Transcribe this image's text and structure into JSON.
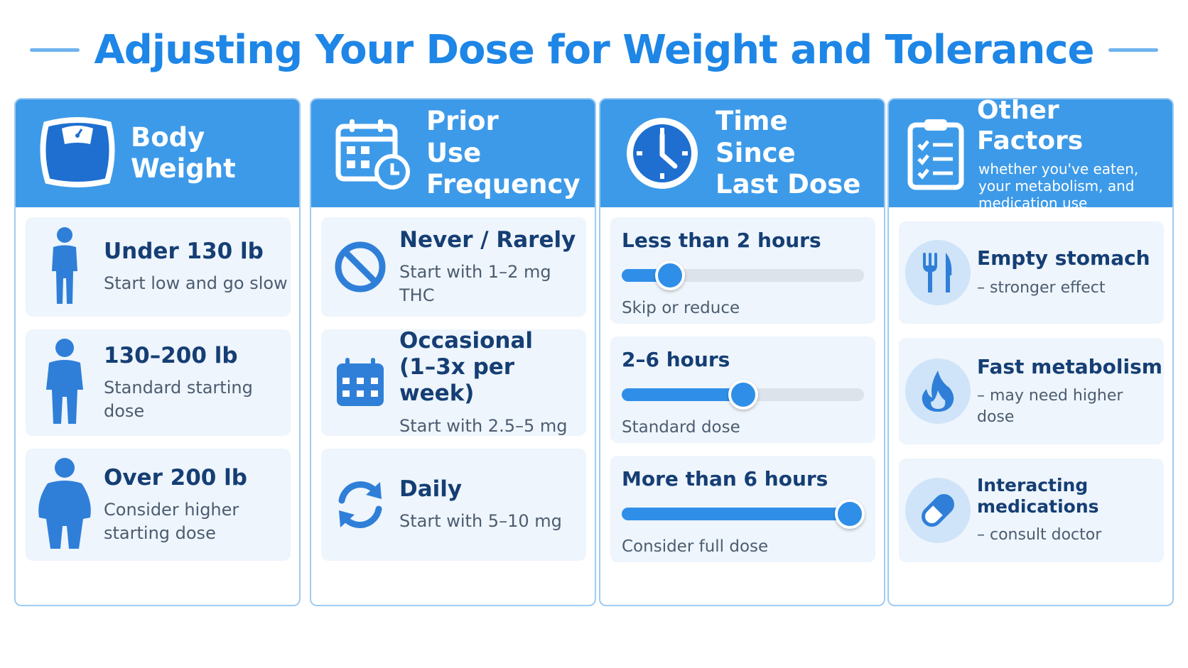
{
  "title": "Adjusting Your Dose for Weight and Tolerance",
  "colors": {
    "accent": "#1e86e6",
    "header": "#3d9ae8",
    "card": "#eef5fc",
    "slider": "#2f8fe8"
  },
  "columns": [
    {
      "title": "Body Weight",
      "icon": "scale-icon",
      "items": [
        {
          "title": "Under 130 lb",
          "sub": "Start low and go slow",
          "icon": "slim-person-icon"
        },
        {
          "title": "130–200 lb",
          "sub": "Standard starting dose",
          "icon": "medium-person-icon"
        },
        {
          "title": "Over 200 lb",
          "sub": "Consider higher starting dose",
          "icon": "large-person-icon"
        }
      ]
    },
    {
      "title": "Prior Use Frequency",
      "icon": "calendar-clock-icon",
      "items": [
        {
          "title": "Never / Rarely",
          "sub": "Start with 1–2 mg THC",
          "icon": "prohibited-icon"
        },
        {
          "title": "Occasional (1–3x per week)",
          "sub": "Start with 2.5–5 mg",
          "icon": "calendar-icon"
        },
        {
          "title": "Daily",
          "sub": "Start with 5–10 mg",
          "icon": "refresh-icon"
        }
      ]
    },
    {
      "title": "Time Since Last Dose",
      "icon": "clock-icon",
      "items": [
        {
          "title": "Less than 2 hours",
          "sub": "Skip or reduce",
          "level": 0.2
        },
        {
          "title": "2–6 hours",
          "sub": "Standard dose",
          "level": 0.5
        },
        {
          "title": "More than 6 hours",
          "sub": "Consider full dose",
          "level": 0.94
        }
      ]
    },
    {
      "title": "Other Factors",
      "subtitle": "whether you've eaten, your metabolism, and medication use",
      "icon": "clipboard-checklist-icon",
      "items": [
        {
          "title": "Empty stomach",
          "sub": "– stronger effect",
          "icon": "fork-knife-icon"
        },
        {
          "title": "Fast metabolism",
          "sub": "– may need higher dose",
          "icon": "flame-icon"
        },
        {
          "title": "Interacting medications",
          "sub": "– consult doctor",
          "icon": "pill-icon"
        }
      ]
    }
  ]
}
